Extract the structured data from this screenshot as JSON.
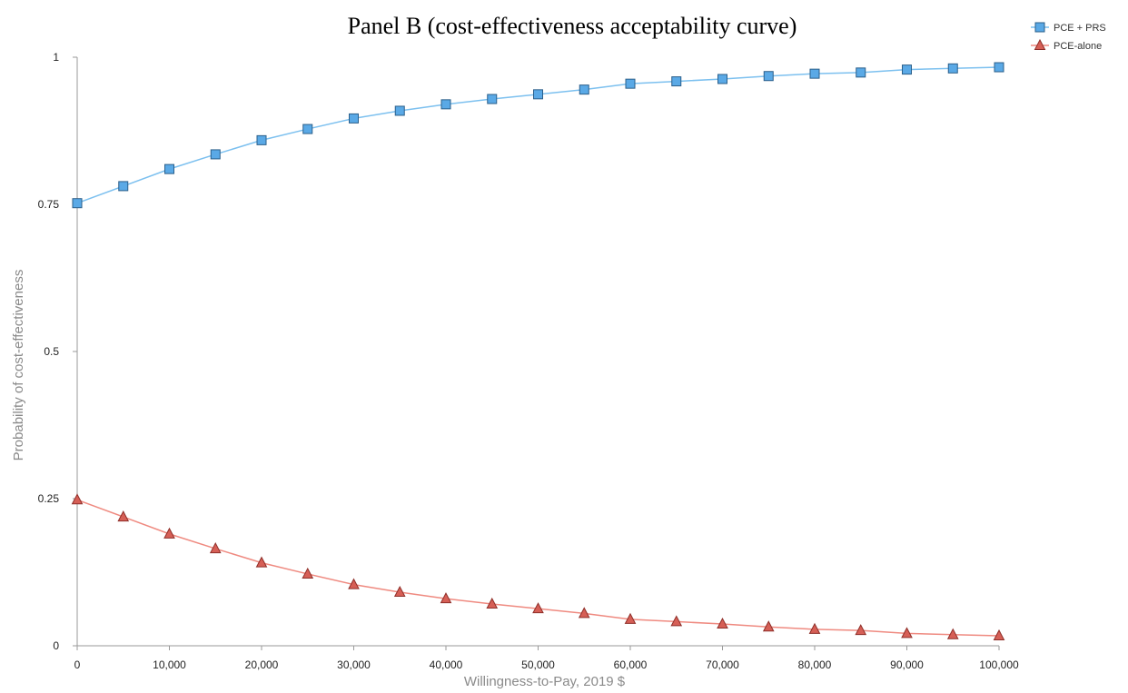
{
  "chart_data": {
    "type": "line",
    "title": "Panel B (cost-effectiveness acceptability curve)",
    "xlabel": "Willingness-to-Pay, 2019 $",
    "ylabel": "Probability of cost-effectiveness",
    "xlim": [
      0,
      100000
    ],
    "ylim": [
      0,
      1
    ],
    "x_ticks": [
      0,
      10000,
      20000,
      30000,
      40000,
      50000,
      60000,
      70000,
      80000,
      90000,
      100000
    ],
    "x_tick_labels": [
      "0",
      "10,000",
      "20,000",
      "30,000",
      "40,000",
      "50,000",
      "60,000",
      "70,000",
      "80,000",
      "90,000",
      "100,000"
    ],
    "y_ticks": [
      0,
      0.25,
      0.5,
      0.75,
      1
    ],
    "y_tick_labels": [
      "0",
      "0.25",
      "0.5",
      "0.75",
      "1"
    ],
    "grid": false,
    "legend_position": "top-right",
    "x": [
      0,
      5000,
      10000,
      15000,
      20000,
      25000,
      30000,
      35000,
      40000,
      45000,
      50000,
      55000,
      60000,
      65000,
      70000,
      75000,
      80000,
      85000,
      90000,
      95000,
      100000
    ],
    "series": [
      {
        "name": "PCE + PRS",
        "marker": "square",
        "line_color": "#7cc0ef",
        "marker_fill": "#5aa9e6",
        "marker_stroke": "#2b5f8a",
        "values": [
          0.752,
          0.781,
          0.81,
          0.835,
          0.859,
          0.878,
          0.896,
          0.909,
          0.92,
          0.929,
          0.937,
          0.945,
          0.955,
          0.959,
          0.963,
          0.968,
          0.972,
          0.974,
          0.979,
          0.981,
          0.983
        ]
      },
      {
        "name": "PCE-alone",
        "marker": "triangle",
        "line_color": "#ef8a80",
        "marker_fill": "#d65f56",
        "marker_stroke": "#8e2e28",
        "values": [
          0.248,
          0.219,
          0.19,
          0.165,
          0.141,
          0.122,
          0.104,
          0.091,
          0.08,
          0.071,
          0.063,
          0.055,
          0.045,
          0.041,
          0.037,
          0.032,
          0.028,
          0.026,
          0.021,
          0.019,
          0.017
        ]
      }
    ]
  }
}
